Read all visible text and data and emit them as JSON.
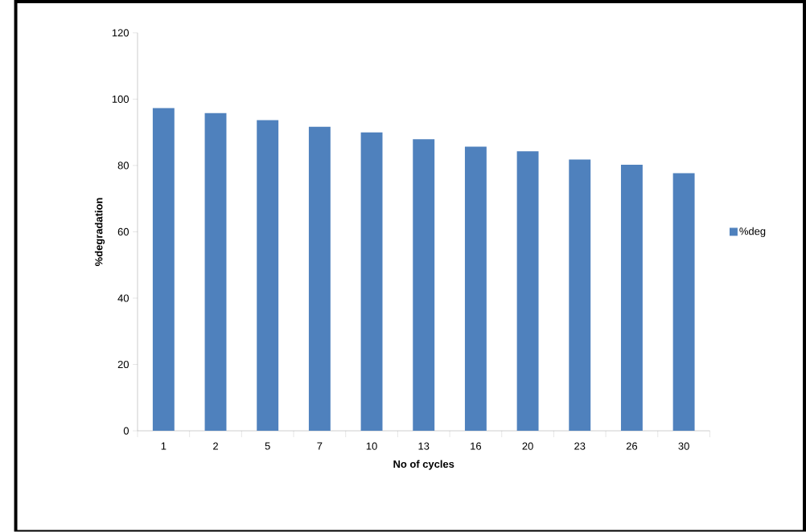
{
  "chart_data": {
    "type": "bar",
    "xlabel": "No of cycles",
    "ylabel": "%degradation",
    "categories": [
      "1",
      "2",
      "5",
      "7",
      "10",
      "13",
      "16",
      "20",
      "23",
      "26",
      "30"
    ],
    "series": [
      {
        "name": "%deg",
        "color": "#4f81bd",
        "values": [
          97.3,
          95.8,
          93.7,
          91.7,
          90.0,
          87.9,
          85.7,
          84.3,
          81.8,
          80.2,
          77.7
        ]
      }
    ],
    "ylim": [
      0,
      120
    ],
    "yticks": [
      0,
      20,
      40,
      60,
      80,
      100,
      120
    ],
    "grid": false,
    "legend": "right"
  }
}
